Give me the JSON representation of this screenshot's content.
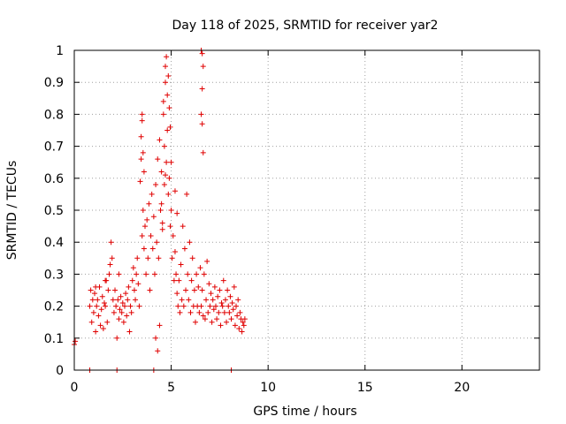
{
  "chart_data": {
    "type": "scatter",
    "title": "Day 118 of 2025, SRMTID for receiver yar2",
    "xlabel": "GPS time / hours",
    "ylabel": "SRMTID / TECUs",
    "xlim": [
      0,
      24
    ],
    "ylim": [
      0,
      1
    ],
    "xticks": [
      "0",
      "5",
      "10",
      "15",
      "20"
    ],
    "yticks": [
      "0",
      "0.1",
      "0.2",
      "0.3",
      "0.4",
      "0.5",
      "0.6",
      "0.7",
      "0.8",
      "0.9",
      "1"
    ],
    "grid": true,
    "marker": "+",
    "color": "#e00000",
    "series": [
      {
        "name": "yar2",
        "x": [
          0.0,
          0.05,
          0.8,
          0.85,
          0.9,
          0.95,
          1.0,
          1.05,
          1.1,
          1.15,
          1.2,
          1.25,
          1.3,
          1.35,
          1.4,
          1.45,
          1.5,
          1.55,
          1.6,
          1.65,
          1.7,
          1.75,
          1.8,
          1.85,
          1.9,
          1.95,
          2.0,
          2.05,
          2.1,
          2.15,
          2.2,
          2.25,
          2.3,
          2.35,
          2.4,
          2.45,
          2.5,
          2.55,
          2.6,
          2.65,
          2.7,
          2.75,
          2.8,
          2.85,
          2.9,
          2.95,
          3.0,
          3.05,
          3.1,
          3.15,
          3.2,
          3.25,
          3.3,
          3.35,
          3.4,
          3.45,
          3.5,
          3.55,
          3.6,
          3.65,
          3.7,
          3.75,
          3.8,
          3.85,
          3.9,
          3.95,
          4.0,
          4.05,
          4.1,
          4.15,
          4.2,
          4.25,
          4.3,
          4.35,
          4.4,
          4.45,
          4.5,
          4.55,
          4.6,
          4.65,
          4.7,
          4.75,
          4.8,
          4.85,
          4.9,
          4.95,
          5.0,
          5.05,
          5.1,
          5.15,
          5.2,
          5.25,
          5.3,
          5.35,
          5.4,
          5.45,
          5.5,
          5.55,
          5.6,
          5.65,
          5.7,
          5.75,
          5.8,
          5.85,
          5.9,
          5.95,
          6.0,
          6.05,
          6.1,
          6.15,
          6.2,
          6.25,
          6.3,
          6.35,
          6.4,
          6.45,
          6.5,
          6.55,
          6.6,
          6.65,
          6.7,
          6.75,
          6.8,
          6.85,
          6.9,
          6.95,
          7.0,
          7.05,
          7.1,
          7.15,
          7.2,
          7.25,
          7.3,
          7.35,
          7.4,
          7.45,
          7.5,
          7.55,
          7.6,
          7.65,
          7.7,
          7.75,
          7.8,
          7.85,
          7.9,
          7.95,
          8.0,
          8.05,
          8.1,
          8.15,
          8.2,
          8.25,
          8.3,
          8.35,
          8.4,
          8.45,
          8.5,
          8.55,
          8.6,
          8.65,
          8.7,
          8.75,
          8.8,
          0.8,
          2.2,
          4.1,
          8.1,
          1.1,
          1.6,
          2.3,
          3.5,
          3.45,
          3.5,
          3.55,
          3.6,
          4.7,
          4.75,
          4.8,
          4.85,
          4.9,
          4.95,
          6.55,
          6.6,
          6.65,
          6.6,
          6.55,
          6.6,
          6.65,
          4.6,
          4.65,
          4.7,
          4.5,
          4.55,
          5.2,
          5.3,
          5.0,
          4.4,
          4.3,
          4.2
        ],
        "y": [
          0.08,
          0.09,
          0.2,
          0.25,
          0.15,
          0.22,
          0.18,
          0.24,
          0.12,
          0.2,
          0.22,
          0.17,
          0.26,
          0.14,
          0.19,
          0.23,
          0.13,
          0.21,
          0.2,
          0.28,
          0.15,
          0.25,
          0.3,
          0.33,
          0.4,
          0.35,
          0.22,
          0.18,
          0.25,
          0.2,
          0.1,
          0.22,
          0.16,
          0.19,
          0.23,
          0.18,
          0.21,
          0.15,
          0.2,
          0.24,
          0.17,
          0.22,
          0.26,
          0.12,
          0.2,
          0.18,
          0.28,
          0.32,
          0.25,
          0.22,
          0.3,
          0.35,
          0.27,
          0.2,
          0.59,
          0.66,
          0.42,
          0.5,
          0.38,
          0.45,
          0.3,
          0.47,
          0.35,
          0.52,
          0.25,
          0.42,
          0.55,
          0.38,
          0.48,
          0.3,
          0.58,
          0.4,
          0.66,
          0.35,
          0.72,
          0.5,
          0.62,
          0.44,
          0.8,
          0.58,
          0.9,
          0.65,
          0.75,
          0.55,
          0.6,
          0.45,
          0.5,
          0.35,
          0.42,
          0.28,
          0.37,
          0.3,
          0.24,
          0.2,
          0.28,
          0.18,
          0.33,
          0.22,
          0.45,
          0.2,
          0.38,
          0.25,
          0.55,
          0.3,
          0.22,
          0.4,
          0.18,
          0.28,
          0.35,
          0.2,
          0.25,
          0.15,
          0.3,
          0.2,
          0.26,
          0.18,
          0.32,
          0.2,
          0.25,
          0.17,
          0.3,
          0.16,
          0.22,
          0.34,
          0.18,
          0.27,
          0.2,
          0.24,
          0.15,
          0.22,
          0.19,
          0.26,
          0.2,
          0.16,
          0.23,
          0.18,
          0.25,
          0.14,
          0.21,
          0.2,
          0.28,
          0.18,
          0.22,
          0.15,
          0.25,
          0.2,
          0.18,
          0.23,
          0.16,
          0.21,
          0.19,
          0.26,
          0.14,
          0.2,
          0.17,
          0.22,
          0.13,
          0.18,
          0.16,
          0.12,
          0.15,
          0.14,
          0.16,
          0.0,
          0.0,
          0.0,
          0.0,
          0.26,
          0.28,
          0.3,
          0.8,
          0.73,
          0.78,
          0.68,
          0.62,
          0.95,
          0.98,
          0.86,
          0.92,
          0.82,
          0.76,
          1.0,
          0.99,
          0.95,
          0.88,
          0.8,
          0.77,
          0.68,
          0.84,
          0.7,
          0.61,
          0.52,
          0.46,
          0.56,
          0.49,
          0.65,
          0.14,
          0.06,
          0.1
        ]
      }
    ]
  }
}
